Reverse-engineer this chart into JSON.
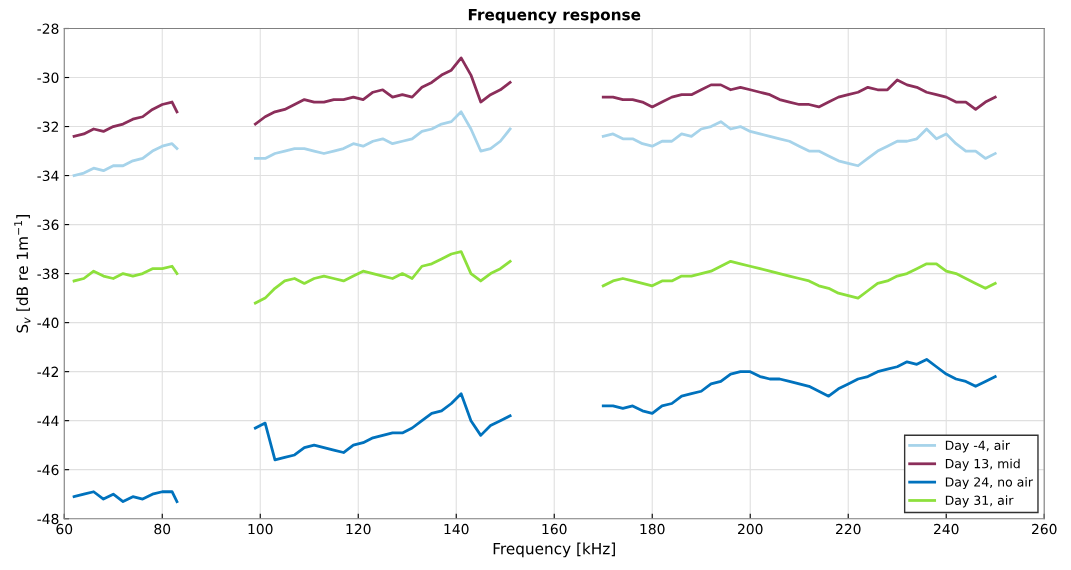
{
  "chart_data": {
    "type": "line",
    "title": "Frequency response",
    "xlabel": "Frequency [kHz]",
    "ylabel": "S$_{v}$ [dB re 1m$^{−1}$]",
    "x": [
      62,
      64,
      66,
      68,
      70,
      72,
      74,
      76,
      78,
      80,
      82,
      83,
      90,
      99,
      101,
      103,
      105,
      107,
      109,
      111,
      113,
      115,
      117,
      119,
      121,
      123,
      125,
      127,
      129,
      131,
      133,
      135,
      137,
      139,
      141,
      143,
      145,
      147,
      149,
      151,
      160,
      170,
      172,
      174,
      176,
      178,
      180,
      182,
      184,
      186,
      188,
      190,
      192,
      194,
      196,
      198,
      200,
      202,
      204,
      206,
      208,
      210,
      212,
      214,
      216,
      218,
      220,
      222,
      224,
      226,
      228,
      230,
      232,
      234,
      236,
      238,
      240,
      242,
      244,
      246,
      248,
      250
    ],
    "series": [
      {
        "name": "Day -4, air",
        "color": "#a6d3ea",
        "values": [
          -34.0,
          -33.9,
          -33.7,
          -33.8,
          -33.6,
          -33.6,
          -33.4,
          -33.3,
          -33.0,
          -32.8,
          -32.7,
          -32.9,
          null,
          -33.3,
          -33.3,
          -33.1,
          -33.0,
          -32.9,
          -32.9,
          -33.0,
          -33.1,
          -33.0,
          -32.9,
          -32.7,
          -32.8,
          -32.6,
          -32.5,
          -32.7,
          -32.6,
          -32.5,
          -32.2,
          -32.1,
          -31.9,
          -31.8,
          -31.4,
          -32.1,
          -33.0,
          -32.9,
          -32.6,
          -32.1,
          null,
          -32.4,
          -32.3,
          -32.5,
          -32.5,
          -32.7,
          -32.8,
          -32.6,
          -32.6,
          -32.3,
          -32.4,
          -32.1,
          -32.0,
          -31.8,
          -32.1,
          -32.0,
          -32.2,
          -32.3,
          -32.4,
          -32.5,
          -32.6,
          -32.8,
          -33.0,
          -33.0,
          -33.2,
          -33.4,
          -33.5,
          -33.6,
          -33.3,
          -33.0,
          -32.8,
          -32.6,
          -32.6,
          -32.5,
          -32.1,
          -32.5,
          -32.3,
          -32.7,
          -33.0,
          -33.0,
          -33.3,
          -33.1
        ]
      },
      {
        "name": "Day 13, mid",
        "color": "#8b2e5a",
        "values": [
          -32.4,
          -32.3,
          -32.1,
          -32.2,
          -32.0,
          -31.9,
          -31.7,
          -31.6,
          -31.3,
          -31.1,
          -31.0,
          -31.4,
          null,
          -31.9,
          -31.6,
          -31.4,
          -31.3,
          -31.1,
          -30.9,
          -31.0,
          -31.0,
          -30.9,
          -30.9,
          -30.8,
          -30.9,
          -30.6,
          -30.5,
          -30.8,
          -30.7,
          -30.8,
          -30.4,
          -30.2,
          -29.9,
          -29.7,
          -29.2,
          -29.9,
          -31.0,
          -30.7,
          -30.5,
          -30.2,
          null,
          -30.8,
          -30.8,
          -30.9,
          -30.9,
          -31.0,
          -31.2,
          -31.0,
          -30.8,
          -30.7,
          -30.7,
          -30.5,
          -30.3,
          -30.3,
          -30.5,
          -30.4,
          -30.5,
          -30.6,
          -30.7,
          -30.9,
          -31.0,
          -31.1,
          -31.1,
          -31.2,
          -31.0,
          -30.8,
          -30.7,
          -30.6,
          -30.4,
          -30.5,
          -30.5,
          -30.1,
          -30.3,
          -30.4,
          -30.6,
          -30.7,
          -30.8,
          -31.0,
          -31.0,
          -31.3,
          -31.0,
          -30.8
        ]
      },
      {
        "name": "Day 24, no air",
        "color": "#0072bd",
        "values": [
          -47.1,
          -47.0,
          -46.9,
          -47.2,
          -47.0,
          -47.3,
          -47.1,
          -47.2,
          -47.0,
          -46.9,
          -46.9,
          -47.3,
          null,
          -44.3,
          -44.1,
          -45.6,
          -45.5,
          -45.4,
          -45.1,
          -45.0,
          -45.1,
          -45.2,
          -45.3,
          -45.0,
          -44.9,
          -44.7,
          -44.6,
          -44.5,
          -44.5,
          -44.3,
          -44.0,
          -43.7,
          -43.6,
          -43.3,
          -42.9,
          -44.0,
          -44.6,
          -44.2,
          -44.0,
          -43.8,
          null,
          -43.4,
          -43.4,
          -43.5,
          -43.4,
          -43.6,
          -43.7,
          -43.4,
          -43.3,
          -43.0,
          -42.9,
          -42.8,
          -42.5,
          -42.4,
          -42.1,
          -42.0,
          -42.0,
          -42.2,
          -42.3,
          -42.3,
          -42.4,
          -42.5,
          -42.6,
          -42.8,
          -43.0,
          -42.7,
          -42.5,
          -42.3,
          -42.2,
          -42.0,
          -41.9,
          -41.8,
          -41.6,
          -41.7,
          -41.5,
          -41.8,
          -42.1,
          -42.3,
          -42.4,
          -42.6,
          -42.4,
          -42.2
        ]
      },
      {
        "name": "Day 31, air",
        "color": "#8de03c",
        "values": [
          -38.3,
          -38.2,
          -37.9,
          -38.1,
          -38.2,
          -38.0,
          -38.1,
          -38.0,
          -37.8,
          -37.8,
          -37.7,
          -38.0,
          null,
          -39.2,
          -39.0,
          -38.6,
          -38.3,
          -38.2,
          -38.4,
          -38.2,
          -38.1,
          -38.2,
          -38.3,
          -38.1,
          -37.9,
          -38.0,
          -38.1,
          -38.2,
          -38.0,
          -38.2,
          -37.7,
          -37.6,
          -37.4,
          -37.2,
          -37.1,
          -38.0,
          -38.3,
          -38.0,
          -37.8,
          -37.5,
          null,
          -38.5,
          -38.3,
          -38.2,
          -38.3,
          -38.4,
          -38.5,
          -38.3,
          -38.3,
          -38.1,
          -38.1,
          -38.0,
          -37.9,
          -37.7,
          -37.5,
          -37.6,
          -37.7,
          -37.8,
          -37.9,
          -38.0,
          -38.1,
          -38.2,
          -38.3,
          -38.5,
          -38.6,
          -38.8,
          -38.9,
          -39.0,
          -38.7,
          -38.4,
          -38.3,
          -38.1,
          -38.0,
          -37.8,
          -37.6,
          -37.6,
          -37.9,
          -38.0,
          -38.2,
          -38.4,
          -38.6,
          -38.4
        ]
      }
    ],
    "xlim": [
      60,
      260
    ],
    "xticks": [
      60,
      80,
      100,
      120,
      140,
      160,
      180,
      200,
      220,
      240,
      260
    ],
    "ylim": [
      -48,
      -28
    ],
    "yticks": [
      -48,
      -46,
      -44,
      -42,
      -40,
      -38,
      -36,
      -34,
      -32,
      -30,
      -28
    ],
    "grid": true,
    "legend": "bottom right",
    "line_style": "solid",
    "marker": "none"
  }
}
